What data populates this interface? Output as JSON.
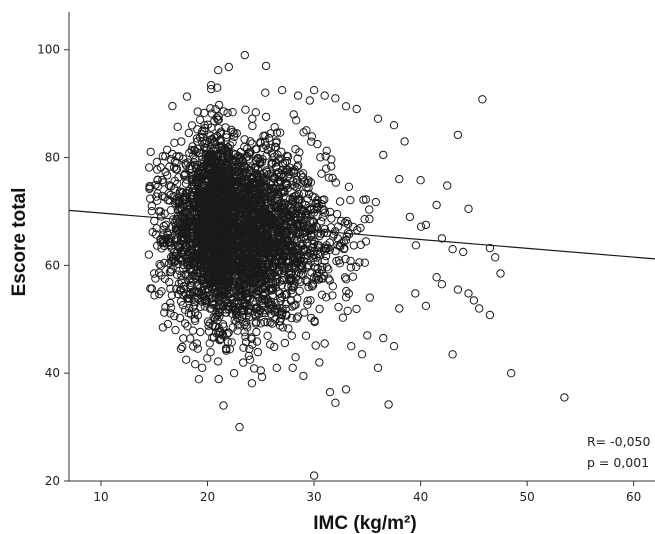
{
  "chart_data": {
    "type": "scatter",
    "xlabel": "IMC (kg/m²)",
    "ylabel": "Escore total",
    "xlim": [
      7,
      62
    ],
    "ylim": [
      20,
      107
    ],
    "x_ticks": [
      "10",
      "20",
      "30",
      "40",
      "50",
      "60"
    ],
    "y_ticks": [
      "20",
      "40",
      "60",
      "80",
      "100"
    ],
    "grid": false,
    "marker": "open-circle",
    "marker_color": "#1a1a1a",
    "fit_line": {
      "type": "linear",
      "points": [
        [
          7,
          70.2
        ],
        [
          62,
          61.2
        ]
      ],
      "color": "#1a1a1a"
    },
    "annotations": [
      "R= -0,050",
      "p = 0,001"
    ],
    "cloud": {
      "n": 3600,
      "x_mode": 22.0,
      "x_sd_left": 2.6,
      "x_sd_right": 4.6,
      "y_mean": 66.5,
      "y_sd": 9.0
    },
    "points": [
      [
        21,
        96.2
      ],
      [
        22,
        96.8
      ],
      [
        23.5,
        99.0
      ],
      [
        25.5,
        97.0
      ],
      [
        27.0,
        92.5
      ],
      [
        28.5,
        91.5
      ],
      [
        30.0,
        92.5
      ],
      [
        31.0,
        91.5
      ],
      [
        32.0,
        91.0
      ],
      [
        33.0,
        89.5
      ],
      [
        34.0,
        89.0
      ],
      [
        36.0,
        87.2
      ],
      [
        37.5,
        86.0
      ],
      [
        38.5,
        83.0
      ],
      [
        43.5,
        84.2
      ],
      [
        45.8,
        90.8
      ],
      [
        36.5,
        80.5
      ],
      [
        38.0,
        76.0
      ],
      [
        40.0,
        75.8
      ],
      [
        41.5,
        71.2
      ],
      [
        42.5,
        74.8
      ],
      [
        44.5,
        70.5
      ],
      [
        39.0,
        69.0
      ],
      [
        40.5,
        67.5
      ],
      [
        42.0,
        65.0
      ],
      [
        43.0,
        63.0
      ],
      [
        44.0,
        62.5
      ],
      [
        46.5,
        63.2
      ],
      [
        47.0,
        61.5
      ],
      [
        47.5,
        58.5
      ],
      [
        41.5,
        57.8
      ],
      [
        42.0,
        56.5
      ],
      [
        43.5,
        55.5
      ],
      [
        44.5,
        54.8
      ],
      [
        45.0,
        53.5
      ],
      [
        45.5,
        52.0
      ],
      [
        46.5,
        50.8
      ],
      [
        39.5,
        54.8
      ],
      [
        40.5,
        52.5
      ],
      [
        38.0,
        52.0
      ],
      [
        14.5,
        62.0
      ],
      [
        15.0,
        58.5
      ],
      [
        16.0,
        57.5
      ],
      [
        15.5,
        60.2
      ],
      [
        16.5,
        53.0
      ],
      [
        17.0,
        48.0
      ],
      [
        17.5,
        44.5
      ],
      [
        18.0,
        42.5
      ],
      [
        19.0,
        45.5
      ],
      [
        19.5,
        41.0
      ],
      [
        21.5,
        34.0
      ],
      [
        23.0,
        30.0
      ],
      [
        22.5,
        40.0
      ],
      [
        24.0,
        42.5
      ],
      [
        25.0,
        40.5
      ],
      [
        26.5,
        41.0
      ],
      [
        28.0,
        41.0
      ],
      [
        29.0,
        39.5
      ],
      [
        30.5,
        42.0
      ],
      [
        31.5,
        36.5
      ],
      [
        32.0,
        34.5
      ],
      [
        33.0,
        37.0
      ],
      [
        33.5,
        45.0
      ],
      [
        34.5,
        43.5
      ],
      [
        35.0,
        47.0
      ],
      [
        36.0,
        41.0
      ],
      [
        37.0,
        34.2
      ],
      [
        37.5,
        45.0
      ],
      [
        43.0,
        43.5
      ],
      [
        48.5,
        40.0
      ],
      [
        53.5,
        35.5
      ],
      [
        30.0,
        21.0
      ],
      [
        31.0,
        45.5
      ],
      [
        36.5,
        46.5
      ]
    ]
  }
}
